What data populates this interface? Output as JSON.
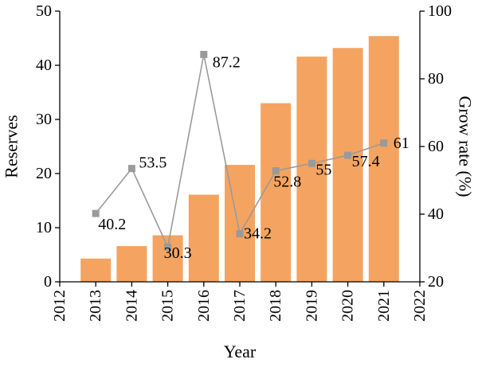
{
  "chart_data": {
    "type": "bar",
    "x": [
      2013,
      2014,
      2015,
      2016,
      2017,
      2018,
      2019,
      2020,
      2021
    ],
    "series": [
      {
        "type": "bar",
        "axis": "left",
        "color": "#F4A460",
        "values": [
          4.3,
          6.6,
          8.6,
          16.1,
          21.6,
          33.0,
          41.6,
          43.2,
          45.4
        ]
      },
      {
        "type": "line",
        "axis": "right",
        "color": "#9a9a9a",
        "marker": "square",
        "values": [
          40.2,
          53.5,
          30.3,
          87.2,
          34.2,
          52.8,
          55,
          57.4,
          61
        ],
        "labels": [
          "40.2",
          "53.5",
          "30.3",
          "87.2",
          "34.2",
          "52.8",
          "55",
          "57.4",
          "61"
        ]
      }
    ],
    "xlabel": "Year",
    "ylabel": "Reserves",
    "y2label": "Grow rate (%)",
    "xlim": [
      2012,
      2022
    ],
    "ylim": [
      0,
      50
    ],
    "y2lim": [
      20,
      100
    ],
    "xticks": [
      "2012",
      "2013",
      "2014",
      "2015",
      "2016",
      "2017",
      "2018",
      "2019",
      "2020",
      "2021",
      "2022"
    ],
    "yticks": [
      "0",
      "10",
      "20",
      "30",
      "40",
      "50"
    ],
    "y2ticks": [
      "20",
      "40",
      "60",
      "80",
      "100"
    ],
    "grid": false
  }
}
